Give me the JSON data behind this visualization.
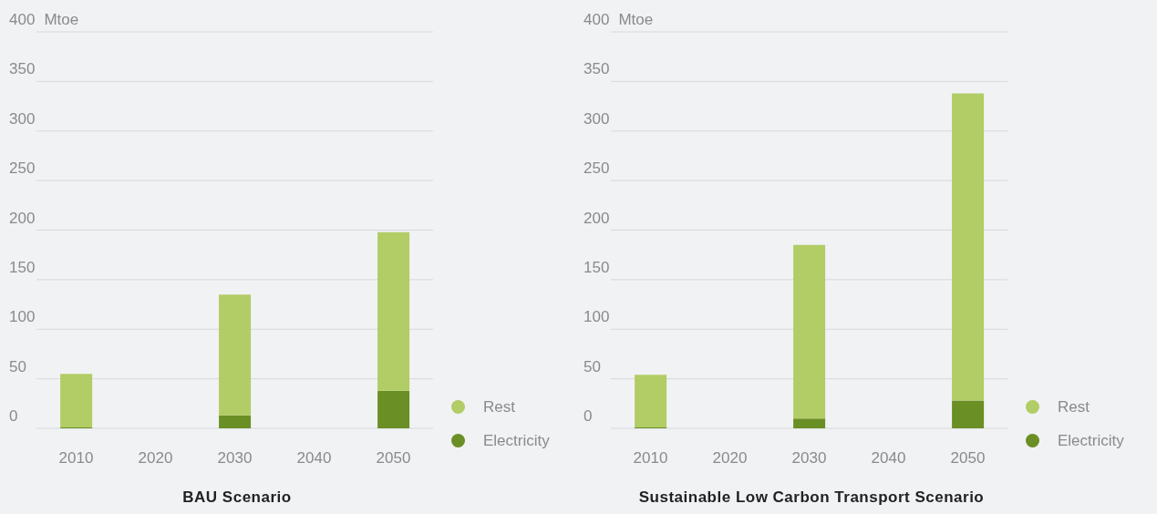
{
  "chart_data": [
    {
      "type": "bar",
      "title": "BAU Scenario",
      "ylabel": "Mtoe",
      "categories": [
        "2010",
        "2020",
        "2030",
        "2040",
        "2050"
      ],
      "stacked": true,
      "series": [
        {
          "name": "Electricity",
          "color": "#6a8f24",
          "values": [
            1,
            null,
            13,
            null,
            38
          ]
        },
        {
          "name": "Rest",
          "color": "#b2cc66",
          "values": [
            54,
            null,
            122,
            null,
            160
          ]
        }
      ],
      "ylim": [
        0,
        400
      ],
      "yticks": [
        0,
        50,
        100,
        150,
        200,
        250,
        300,
        350,
        400
      ],
      "grid": "y",
      "legend": "right"
    },
    {
      "type": "bar",
      "title": "Sustainable Low Carbon Transport Scenario",
      "ylabel": "Mtoe",
      "categories": [
        "2010",
        "2020",
        "2030",
        "2040",
        "2050"
      ],
      "stacked": true,
      "series": [
        {
          "name": "Electricity",
          "color": "#6a8f24",
          "values": [
            1,
            null,
            10,
            null,
            28
          ]
        },
        {
          "name": "Rest",
          "color": "#b2cc66",
          "values": [
            53,
            null,
            175,
            null,
            310
          ]
        }
      ],
      "ylim": [
        0,
        400
      ],
      "yticks": [
        0,
        50,
        100,
        150,
        200,
        250,
        300,
        350,
        400
      ],
      "grid": "y",
      "legend": "right"
    }
  ]
}
